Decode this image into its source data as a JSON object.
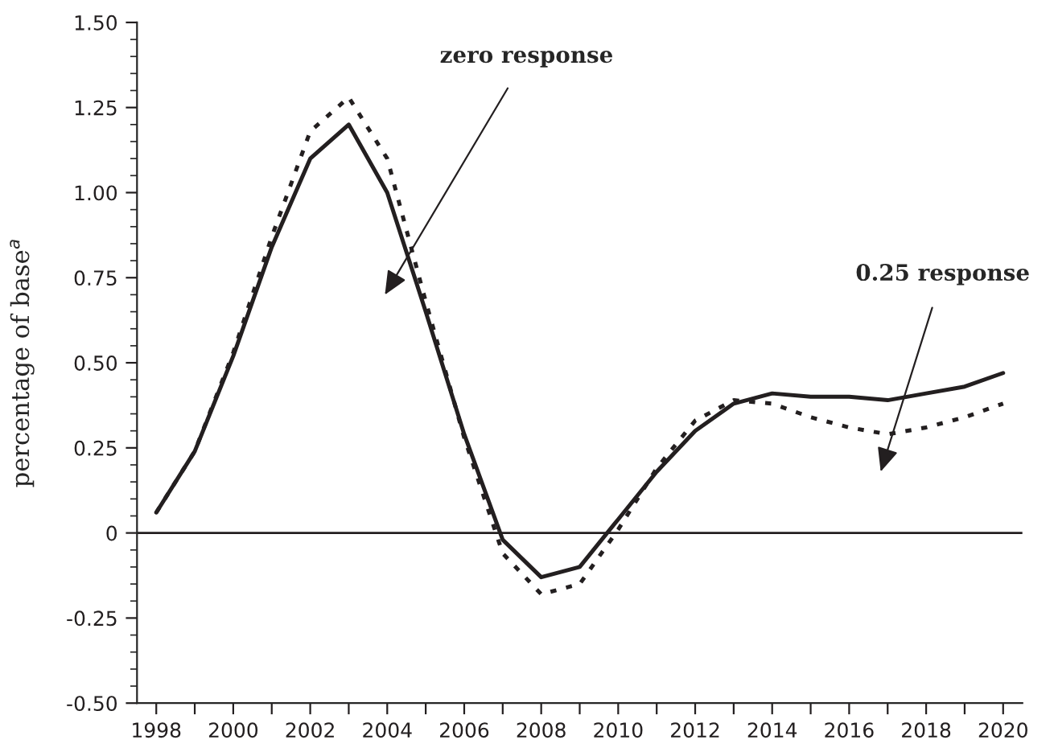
{
  "chart_data": {
    "type": "line",
    "ylabel": "percentage of base$^{a}$",
    "x": [
      1998,
      1999,
      2000,
      2001,
      2002,
      2003,
      2004,
      2005,
      2006,
      2007,
      2008,
      2009,
      2010,
      2011,
      2012,
      2013,
      2014,
      2015,
      2016,
      2017,
      2018,
      2019,
      2020
    ],
    "series": [
      {
        "color": "#231f20",
        "line_style": "solid",
        "values": [
          0.06,
          0.24,
          0.52,
          0.84,
          1.1,
          1.2,
          1.0,
          0.65,
          0.29,
          -0.02,
          -0.13,
          -0.1,
          0.04,
          0.18,
          0.3,
          0.38,
          0.41,
          0.4,
          0.4,
          0.39,
          0.41,
          0.43,
          0.47
        ]
      },
      {
        "color": "#231f20",
        "line_style": "dotted",
        "values": [
          0.06,
          0.24,
          0.53,
          0.87,
          1.18,
          1.28,
          1.1,
          0.68,
          0.28,
          -0.06,
          -0.18,
          -0.15,
          0.01,
          0.19,
          0.33,
          0.39,
          0.38,
          0.34,
          0.31,
          0.29,
          0.31,
          0.34,
          0.38
        ]
      }
    ],
    "xlim": [
      1997.5,
      2020.5
    ],
    "xticks": [
      1998,
      {
        "value": 1999,
        "label": null
      },
      2000,
      {
        "value": 2001,
        "label": null
      },
      2002,
      {
        "value": 2003,
        "label": null
      },
      2004,
      {
        "value": 2005,
        "label": null
      },
      2006,
      {
        "value": 2007,
        "label": null
      },
      2008,
      {
        "value": 2009,
        "label": null
      },
      2010,
      {
        "value": 2011,
        "label": null
      },
      2012,
      {
        "value": 2013,
        "label": null
      },
      2014,
      {
        "value": 2015,
        "label": null
      },
      2016,
      {
        "value": 2017,
        "label": null
      },
      2018,
      {
        "value": 2019,
        "label": null
      },
      2020
    ],
    "ylim": [
      -0.5,
      1.5
    ],
    "yticks": [
      {
        "value": -0.5,
        "label": "-0.50"
      },
      {
        "value": -0.25,
        "label": "-0.25"
      },
      {
        "value": 0,
        "label": "0"
      },
      {
        "value": 0.25,
        "label": "0.25"
      },
      {
        "value": 0.5,
        "label": "0.50"
      },
      {
        "value": 0.75,
        "label": "0.75"
      },
      {
        "value": 1.0,
        "label": "1.00"
      },
      {
        "value": 1.25,
        "label": "1.25"
      },
      {
        "value": 1.5,
        "label": "1.50"
      }
    ],
    "ref_lines": [
      {
        "axis": "y",
        "value": 0,
        "label": null,
        "color": "#231f20"
      }
    ],
    "annotations": [
      "zero response",
      "0.25 response"
    ],
    "grid": false,
    "legend": false
  }
}
